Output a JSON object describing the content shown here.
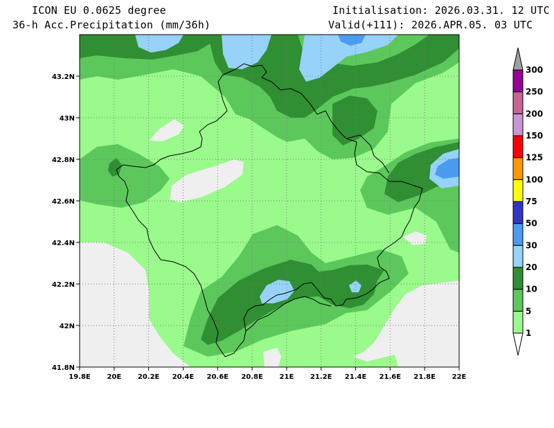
{
  "header": {
    "model": "ICON EU 0.0625 degree",
    "field": "36-h Acc.Precipitation (mm/36h)",
    "init": "Initialisation: 2026.03.31. 12 UTC",
    "valid": "Valid(+111): 2026.APR.05. 03 UTC"
  },
  "map": {
    "lon_range": [
      19.8,
      22.0
    ],
    "lat_range": [
      41.8,
      43.4
    ],
    "x_ticks": [
      "19.8E",
      "20E",
      "20.2E",
      "20.4E",
      "20.6E",
      "20.8E",
      "21E",
      "21.2E",
      "21.4E",
      "21.6E",
      "21.8E",
      "22E"
    ],
    "y_ticks": [
      "41.8N",
      "42N",
      "42.2N",
      "42.4N",
      "42.6N",
      "42.8N",
      "43N",
      "43.2N"
    ],
    "grid": true
  },
  "colorbar": {
    "levels": [
      "1",
      "5",
      "10",
      "20",
      "30",
      "50",
      "75",
      "100",
      "125",
      "150",
      "200",
      "250",
      "300"
    ],
    "colors": {
      "c1_5": "#9afa8c",
      "c5_10": "#5cc85c",
      "c10_20": "#2f8f32",
      "c20_30": "#96d2fa",
      "c30_50": "#4b9bf0",
      "c50_75": "#3236c8",
      "c75_100": "#ffff00",
      "c100_125": "#ff9900",
      "c125_150": "#ff0000",
      "c150_200": "#c896d2",
      "c200_250": "#c86496",
      "c250_300": "#960096",
      "c300_plus": "#a0a0a0",
      "below_1": "#efefef"
    }
  }
}
